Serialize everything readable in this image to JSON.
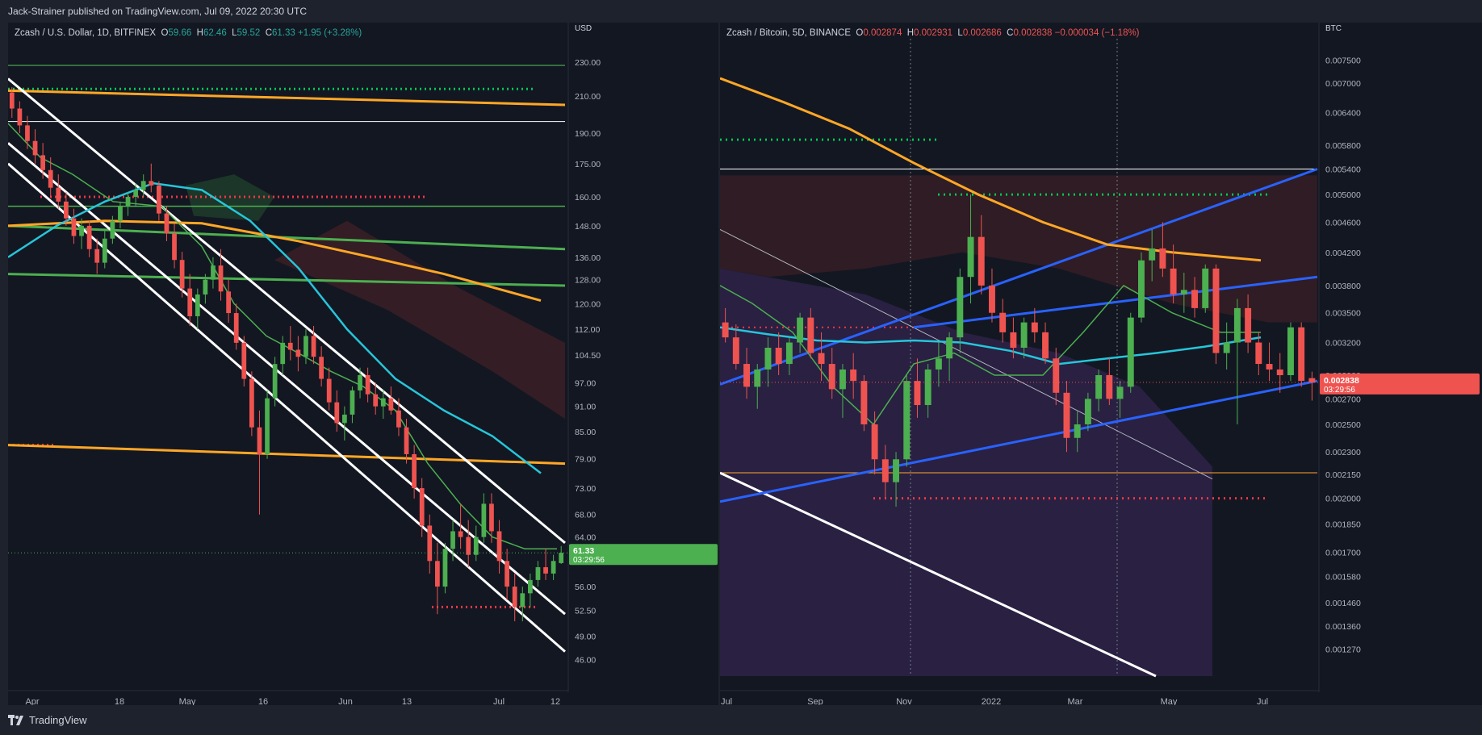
{
  "header": {
    "published_text": "Jack-Strainer published on TradingView.com, Jul 09, 2022 20:30 UTC"
  },
  "footer": {
    "brand": "TradingView"
  },
  "chart_data": [
    {
      "type": "candlestick",
      "title": "Zcash / U.S. Dollar, 1D, BITFINEX",
      "ohlc": {
        "O": "59.66",
        "H": "62.46",
        "L": "59.52",
        "C": "61.33",
        "change": "+1.95 (+3.28%)"
      },
      "currency": "USD",
      "price_ticks": [
        "230.00",
        "210.00",
        "190.00",
        "175.00",
        "160.00",
        "148.00",
        "136.00",
        "128.00",
        "120.00",
        "112.00",
        "104.50",
        "97.00",
        "91.00",
        "85.00",
        "79.00",
        "73.00",
        "68.00",
        "64.00",
        "56.00",
        "52.50",
        "49.00",
        "46.00"
      ],
      "last_price": "61.33",
      "countdown": "03:29:56",
      "x_ticks": [
        "Apr",
        "18",
        "May",
        "16",
        "Jun",
        "13",
        "Jul",
        "12"
      ],
      "ylim": [
        44,
        245
      ],
      "log_scale": true,
      "candles": [
        {
          "o": 212,
          "h": 215,
          "l": 198,
          "c": 203
        },
        {
          "o": 203,
          "h": 207,
          "l": 190,
          "c": 194
        },
        {
          "o": 194,
          "h": 199,
          "l": 182,
          "c": 186
        },
        {
          "o": 186,
          "h": 192,
          "l": 175,
          "c": 179
        },
        {
          "o": 179,
          "h": 185,
          "l": 168,
          "c": 172
        },
        {
          "o": 172,
          "h": 178,
          "l": 160,
          "c": 164
        },
        {
          "o": 164,
          "h": 170,
          "l": 155,
          "c": 158
        },
        {
          "o": 158,
          "h": 162,
          "l": 148,
          "c": 151
        },
        {
          "o": 151,
          "h": 155,
          "l": 141,
          "c": 144
        },
        {
          "o": 144,
          "h": 151,
          "l": 139,
          "c": 148
        },
        {
          "o": 148,
          "h": 150,
          "l": 136,
          "c": 139
        },
        {
          "o": 139,
          "h": 143,
          "l": 130,
          "c": 134
        },
        {
          "o": 134,
          "h": 146,
          "l": 132,
          "c": 143
        },
        {
          "o": 143,
          "h": 152,
          "l": 141,
          "c": 150
        },
        {
          "o": 150,
          "h": 158,
          "l": 147,
          "c": 156
        },
        {
          "o": 156,
          "h": 162,
          "l": 152,
          "c": 160
        },
        {
          "o": 160,
          "h": 166,
          "l": 156,
          "c": 163
        },
        {
          "o": 163,
          "h": 170,
          "l": 160,
          "c": 167
        },
        {
          "o": 167,
          "h": 175,
          "l": 162,
          "c": 165
        },
        {
          "o": 165,
          "h": 167,
          "l": 150,
          "c": 153
        },
        {
          "o": 153,
          "h": 156,
          "l": 142,
          "c": 145
        },
        {
          "o": 145,
          "h": 149,
          "l": 132,
          "c": 135
        },
        {
          "o": 135,
          "h": 138,
          "l": 122,
          "c": 125
        },
        {
          "o": 125,
          "h": 130,
          "l": 113,
          "c": 116
        },
        {
          "o": 116,
          "h": 125,
          "l": 112,
          "c": 123
        },
        {
          "o": 123,
          "h": 130,
          "l": 120,
          "c": 128
        },
        {
          "o": 128,
          "h": 136,
          "l": 125,
          "c": 133
        },
        {
          "o": 133,
          "h": 139,
          "l": 121,
          "c": 124
        },
        {
          "o": 124,
          "h": 128,
          "l": 114,
          "c": 117
        },
        {
          "o": 117,
          "h": 120,
          "l": 106,
          "c": 108
        },
        {
          "o": 108,
          "h": 110,
          "l": 96,
          "c": 98
        },
        {
          "o": 98,
          "h": 100,
          "l": 84,
          "c": 86
        },
        {
          "o": 86,
          "h": 90,
          "l": 68,
          "c": 80
        },
        {
          "o": 80,
          "h": 95,
          "l": 79,
          "c": 93
        },
        {
          "o": 93,
          "h": 104,
          "l": 91,
          "c": 102
        },
        {
          "o": 102,
          "h": 110,
          "l": 99,
          "c": 108
        },
        {
          "o": 108,
          "h": 113,
          "l": 103,
          "c": 106
        },
        {
          "o": 106,
          "h": 110,
          "l": 100,
          "c": 104
        },
        {
          "o": 104,
          "h": 112,
          "l": 102,
          "c": 110
        },
        {
          "o": 110,
          "h": 113,
          "l": 102,
          "c": 104
        },
        {
          "o": 104,
          "h": 107,
          "l": 96,
          "c": 98
        },
        {
          "o": 98,
          "h": 101,
          "l": 90,
          "c": 92
        },
        {
          "o": 92,
          "h": 95,
          "l": 85,
          "c": 87
        },
        {
          "o": 87,
          "h": 91,
          "l": 83,
          "c": 89
        },
        {
          "o": 89,
          "h": 96,
          "l": 87,
          "c": 95
        },
        {
          "o": 95,
          "h": 101,
          "l": 93,
          "c": 99
        },
        {
          "o": 99,
          "h": 101,
          "l": 92,
          "c": 94
        },
        {
          "o": 94,
          "h": 97,
          "l": 89,
          "c": 91
        },
        {
          "o": 91,
          "h": 95,
          "l": 88,
          "c": 93
        },
        {
          "o": 93,
          "h": 96,
          "l": 89,
          "c": 90
        },
        {
          "o": 90,
          "h": 93,
          "l": 84,
          "c": 86
        },
        {
          "o": 86,
          "h": 88,
          "l": 78,
          "c": 80
        },
        {
          "o": 80,
          "h": 82,
          "l": 71,
          "c": 73
        },
        {
          "o": 73,
          "h": 75,
          "l": 64,
          "c": 66
        },
        {
          "o": 66,
          "h": 68,
          "l": 58,
          "c": 60
        },
        {
          "o": 60,
          "h": 63,
          "l": 52,
          "c": 56
        },
        {
          "o": 56,
          "h": 63,
          "l": 55,
          "c": 62
        },
        {
          "o": 62,
          "h": 67,
          "l": 60,
          "c": 65
        },
        {
          "o": 65,
          "h": 70,
          "l": 62,
          "c": 64
        },
        {
          "o": 64,
          "h": 67,
          "l": 59,
          "c": 61
        },
        {
          "o": 61,
          "h": 66,
          "l": 60,
          "c": 64
        },
        {
          "o": 64,
          "h": 72,
          "l": 63,
          "c": 70
        },
        {
          "o": 70,
          "h": 72,
          "l": 63,
          "c": 65
        },
        {
          "o": 65,
          "h": 67,
          "l": 58,
          "c": 60
        },
        {
          "o": 60,
          "h": 62,
          "l": 54,
          "c": 56
        },
        {
          "o": 56,
          "h": 58,
          "l": 51,
          "c": 53
        },
        {
          "o": 53,
          "h": 56,
          "l": 51,
          "c": 55
        },
        {
          "o": 55,
          "h": 58,
          "l": 53,
          "c": 57
        },
        {
          "o": 57,
          "h": 60,
          "l": 56,
          "c": 59
        },
        {
          "o": 59,
          "h": 62,
          "l": 57,
          "c": 58
        },
        {
          "o": 58,
          "h": 61,
          "l": 57,
          "c": 60
        },
        {
          "o": 59.66,
          "h": 62.46,
          "l": 59.52,
          "c": 61.33
        }
      ]
    },
    {
      "type": "candlestick",
      "title": "Zcash / Bitcoin, 5D, BINANCE",
      "ohlc": {
        "O": "0.002874",
        "H": "0.002931",
        "L": "0.002686",
        "C": "0.002838",
        "change": "−0.000034 (−1.18%)"
      },
      "currency": "BTC",
      "price_ticks": [
        "0.007500",
        "0.007000",
        "0.006400",
        "0.005800",
        "0.005400",
        "0.005000",
        "0.004600",
        "0.004200",
        "0.003800",
        "0.003500",
        "0.003200",
        "0.002900",
        "0.002700",
        "0.002500",
        "0.002300",
        "0.002150",
        "0.002000",
        "0.001850",
        "0.001700",
        "0.001580",
        "0.001460",
        "0.001360",
        "0.001270"
      ],
      "last_price": "0.002838",
      "countdown": "03:29:56",
      "x_ticks": [
        "Jul",
        "Sep",
        "Nov",
        "2022",
        "Mar",
        "May",
        "Jul"
      ],
      "ylim": [
        0.00117,
        0.008
      ],
      "log_scale": true,
      "candles": [
        {
          "o": 0.0034,
          "h": 0.00355,
          "l": 0.0032,
          "c": 0.00325
        },
        {
          "o": 0.00325,
          "h": 0.00338,
          "l": 0.00295,
          "c": 0.003
        },
        {
          "o": 0.003,
          "h": 0.00315,
          "l": 0.0027,
          "c": 0.0028
        },
        {
          "o": 0.0028,
          "h": 0.003,
          "l": 0.00262,
          "c": 0.00295
        },
        {
          "o": 0.00295,
          "h": 0.00325,
          "l": 0.0028,
          "c": 0.00315
        },
        {
          "o": 0.00315,
          "h": 0.0033,
          "l": 0.0029,
          "c": 0.003
        },
        {
          "o": 0.003,
          "h": 0.00325,
          "l": 0.0029,
          "c": 0.0032
        },
        {
          "o": 0.0032,
          "h": 0.0035,
          "l": 0.0031,
          "c": 0.00345
        },
        {
          "o": 0.00345,
          "h": 0.00355,
          "l": 0.00305,
          "c": 0.0031
        },
        {
          "o": 0.0031,
          "h": 0.0033,
          "l": 0.00285,
          "c": 0.003
        },
        {
          "o": 0.003,
          "h": 0.00315,
          "l": 0.0027,
          "c": 0.00278
        },
        {
          "o": 0.00278,
          "h": 0.003,
          "l": 0.00255,
          "c": 0.00295
        },
        {
          "o": 0.00295,
          "h": 0.0031,
          "l": 0.0027,
          "c": 0.00285
        },
        {
          "o": 0.00285,
          "h": 0.0029,
          "l": 0.00245,
          "c": 0.0025
        },
        {
          "o": 0.0025,
          "h": 0.0026,
          "l": 0.00215,
          "c": 0.00225
        },
        {
          "o": 0.00225,
          "h": 0.00235,
          "l": 0.002,
          "c": 0.0021
        },
        {
          "o": 0.0021,
          "h": 0.0023,
          "l": 0.00195,
          "c": 0.00225
        },
        {
          "o": 0.00225,
          "h": 0.0029,
          "l": 0.0022,
          "c": 0.00285
        },
        {
          "o": 0.00285,
          "h": 0.00305,
          "l": 0.00255,
          "c": 0.00265
        },
        {
          "o": 0.00265,
          "h": 0.003,
          "l": 0.00255,
          "c": 0.00295
        },
        {
          "o": 0.00295,
          "h": 0.0032,
          "l": 0.0028,
          "c": 0.00305
        },
        {
          "o": 0.00305,
          "h": 0.0033,
          "l": 0.00285,
          "c": 0.00325
        },
        {
          "o": 0.00325,
          "h": 0.004,
          "l": 0.0031,
          "c": 0.0039
        },
        {
          "o": 0.0039,
          "h": 0.005,
          "l": 0.0036,
          "c": 0.0044
        },
        {
          "o": 0.0044,
          "h": 0.0047,
          "l": 0.0037,
          "c": 0.0038
        },
        {
          "o": 0.0038,
          "h": 0.004,
          "l": 0.0034,
          "c": 0.0035
        },
        {
          "o": 0.0035,
          "h": 0.00365,
          "l": 0.0032,
          "c": 0.0033
        },
        {
          "o": 0.0033,
          "h": 0.00345,
          "l": 0.00305,
          "c": 0.00315
        },
        {
          "o": 0.00315,
          "h": 0.00345,
          "l": 0.00305,
          "c": 0.0034
        },
        {
          "o": 0.0034,
          "h": 0.00355,
          "l": 0.0032,
          "c": 0.0033
        },
        {
          "o": 0.0033,
          "h": 0.0034,
          "l": 0.003,
          "c": 0.00305
        },
        {
          "o": 0.00305,
          "h": 0.00315,
          "l": 0.00265,
          "c": 0.00275
        },
        {
          "o": 0.00275,
          "h": 0.00285,
          "l": 0.0023,
          "c": 0.0024
        },
        {
          "o": 0.0024,
          "h": 0.0026,
          "l": 0.0023,
          "c": 0.0025
        },
        {
          "o": 0.0025,
          "h": 0.00275,
          "l": 0.00245,
          "c": 0.0027
        },
        {
          "o": 0.0027,
          "h": 0.00295,
          "l": 0.0026,
          "c": 0.0029
        },
        {
          "o": 0.0029,
          "h": 0.00305,
          "l": 0.00265,
          "c": 0.0027
        },
        {
          "o": 0.0027,
          "h": 0.00285,
          "l": 0.00255,
          "c": 0.0028
        },
        {
          "o": 0.0028,
          "h": 0.0035,
          "l": 0.00275,
          "c": 0.00345
        },
        {
          "o": 0.00345,
          "h": 0.0042,
          "l": 0.0034,
          "c": 0.0041
        },
        {
          "o": 0.0041,
          "h": 0.0045,
          "l": 0.00385,
          "c": 0.00425
        },
        {
          "o": 0.00425,
          "h": 0.0046,
          "l": 0.0039,
          "c": 0.004
        },
        {
          "o": 0.004,
          "h": 0.0043,
          "l": 0.0036,
          "c": 0.0037
        },
        {
          "o": 0.0037,
          "h": 0.00395,
          "l": 0.0035,
          "c": 0.00375
        },
        {
          "o": 0.00375,
          "h": 0.0039,
          "l": 0.00345,
          "c": 0.00355
        },
        {
          "o": 0.00355,
          "h": 0.00405,
          "l": 0.0035,
          "c": 0.004
        },
        {
          "o": 0.004,
          "h": 0.00405,
          "l": 0.003,
          "c": 0.0031
        },
        {
          "o": 0.0031,
          "h": 0.0034,
          "l": 0.00295,
          "c": 0.0032
        },
        {
          "o": 0.0032,
          "h": 0.00365,
          "l": 0.0025,
          "c": 0.00355
        },
        {
          "o": 0.00355,
          "h": 0.0037,
          "l": 0.0031,
          "c": 0.0032
        },
        {
          "o": 0.0032,
          "h": 0.0033,
          "l": 0.0029,
          "c": 0.003
        },
        {
          "o": 0.003,
          "h": 0.0032,
          "l": 0.00285,
          "c": 0.00295
        },
        {
          "o": 0.00295,
          "h": 0.0031,
          "l": 0.00275,
          "c": 0.0029
        },
        {
          "o": 0.0029,
          "h": 0.0034,
          "l": 0.00285,
          "c": 0.00335
        },
        {
          "o": 0.00335,
          "h": 0.0034,
          "l": 0.0028,
          "c": 0.00285
        },
        {
          "o": 0.002874,
          "h": 0.002931,
          "l": 0.002686,
          "c": 0.002838
        }
      ]
    }
  ],
  "colors": {
    "bg": "#131722",
    "frame": "#1e222d",
    "up": "#4caf50",
    "down": "#ef5350",
    "ma_orange": "#ffa726",
    "ma_cyan": "#26c6da",
    "ma_green": "#4caf50",
    "channel": "#ffffff",
    "blue_line": "#2962ff",
    "dotted_green": "#00c853",
    "dotted_red": "#f23645",
    "cloud_red": "#3d1f25",
    "purple_zone": "#2a2145"
  }
}
